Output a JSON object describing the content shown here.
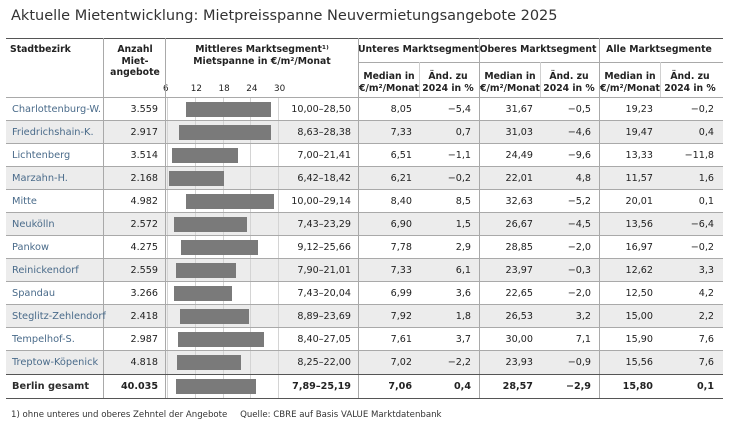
{
  "title": "Aktuelle Mietentwicklung: Mietpreisspanne Neuvermietungsangebote 2025",
  "headers": {
    "district": "Stadtbezirk",
    "count": [
      "Anzahl",
      "Miet-",
      "angebote"
    ],
    "middle_segment": [
      "Mittleres Marktsegment¹⁾",
      "Mietspanne in €/m²/Monat"
    ],
    "lower_segment": "Unteres Marktsegment",
    "upper_segment": "Oberes Marktsegment",
    "all_segments": "Alle Marktsegmente",
    "median": [
      "Median in",
      "€/m²/Monat"
    ],
    "change": [
      "Änd. zu",
      "2024 in %"
    ]
  },
  "scale_ticks": [
    "6",
    "12",
    "18",
    "24",
    "30"
  ],
  "scale": {
    "min": 6,
    "max": 30
  },
  "rows": [
    {
      "district": "Charlottenburg-W.",
      "count": "3.559",
      "low": 10.0,
      "high": 28.5,
      "range": "10,00–28,50",
      "lower_median": "8,05",
      "lower_change": "−5,4",
      "upper_median": "31,67",
      "upper_change": "−0,5",
      "all_median": "19,23",
      "all_change": "−0,2"
    },
    {
      "district": "Friedrichshain-K.",
      "count": "2.917",
      "low": 8.63,
      "high": 28.38,
      "range": "8,63–28,38",
      "lower_median": "7,33",
      "lower_change": "0,7",
      "upper_median": "31,03",
      "upper_change": "−4,6",
      "all_median": "19,47",
      "all_change": "0,4"
    },
    {
      "district": "Lichtenberg",
      "count": "3.514",
      "low": 7.0,
      "high": 21.41,
      "range": "7,00–21,41",
      "lower_median": "6,51",
      "lower_change": "−1,1",
      "upper_median": "24,49",
      "upper_change": "−9,6",
      "all_median": "13,33",
      "all_change": "−11,8"
    },
    {
      "district": "Marzahn-H.",
      "count": "2.168",
      "low": 6.42,
      "high": 18.42,
      "range": "6,42–18,42",
      "lower_median": "6,21",
      "lower_change": "−0,2",
      "upper_median": "22,01",
      "upper_change": "4,8",
      "all_median": "11,57",
      "all_change": "1,6"
    },
    {
      "district": "Mitte",
      "count": "4.982",
      "low": 10.0,
      "high": 29.14,
      "range": "10,00–29,14",
      "lower_median": "8,40",
      "lower_change": "8,5",
      "upper_median": "32,63",
      "upper_change": "−5,2",
      "all_median": "20,01",
      "all_change": "0,1"
    },
    {
      "district": "Neukölln",
      "count": "2.572",
      "low": 7.43,
      "high": 23.29,
      "range": "7,43–23,29",
      "lower_median": "6,90",
      "lower_change": "1,5",
      "upper_median": "26,67",
      "upper_change": "−4,5",
      "all_median": "13,56",
      "all_change": "−6,4"
    },
    {
      "district": "Pankow",
      "count": "4.275",
      "low": 9.12,
      "high": 25.66,
      "range": "9,12–25,66",
      "lower_median": "7,78",
      "lower_change": "2,9",
      "upper_median": "28,85",
      "upper_change": "−2,0",
      "all_median": "16,97",
      "all_change": "−0,2"
    },
    {
      "district": "Reinickendorf",
      "count": "2.559",
      "low": 7.9,
      "high": 21.01,
      "range": "7,90–21,01",
      "lower_median": "7,33",
      "lower_change": "6,1",
      "upper_median": "23,97",
      "upper_change": "−0,3",
      "all_median": "12,62",
      "all_change": "3,3"
    },
    {
      "district": "Spandau",
      "count": "3.266",
      "low": 7.43,
      "high": 20.04,
      "range": "7,43–20,04",
      "lower_median": "6,99",
      "lower_change": "3,6",
      "upper_median": "22,65",
      "upper_change": "−2,0",
      "all_median": "12,50",
      "all_change": "4,2"
    },
    {
      "district": "Steglitz-Zehlendorf",
      "count": "2.418",
      "low": 8.89,
      "high": 23.69,
      "range": "8,89–23,69",
      "lower_median": "7,92",
      "lower_change": "1,8",
      "upper_median": "26,53",
      "upper_change": "3,2",
      "all_median": "15,00",
      "all_change": "2,2"
    },
    {
      "district": "Tempelhof-S.",
      "count": "2.987",
      "low": 8.4,
      "high": 27.05,
      "range": "8,40–27,05",
      "lower_median": "7,61",
      "lower_change": "3,7",
      "upper_median": "30,00",
      "upper_change": "7,1",
      "all_median": "15,90",
      "all_change": "7,6"
    },
    {
      "district": "Treptow-Köpenick",
      "count": "4.818",
      "low": 8.25,
      "high": 22.0,
      "range": "8,25–22,00",
      "lower_median": "7,02",
      "lower_change": "−2,2",
      "upper_median": "23,93",
      "upper_change": "−0,9",
      "all_median": "15,56",
      "all_change": "7,6"
    }
  ],
  "total": {
    "district": "Berlin gesamt",
    "count": "40.035",
    "low": 7.89,
    "high": 25.19,
    "range": "7,89–25,19",
    "lower_median": "7,06",
    "lower_change": "0,4",
    "upper_median": "28,57",
    "upper_change": "−2,9",
    "all_median": "15,80",
    "all_change": "0,1"
  },
  "footnote": "1) ohne unteres und oberes Zehntel der Angebote",
  "source": "Quelle: CBRE auf Basis VALUE Marktdatenbank",
  "colors": {
    "bar": "#7a7a7a",
    "alt_row": "#ececec",
    "district_text": "#4a6b8a"
  }
}
